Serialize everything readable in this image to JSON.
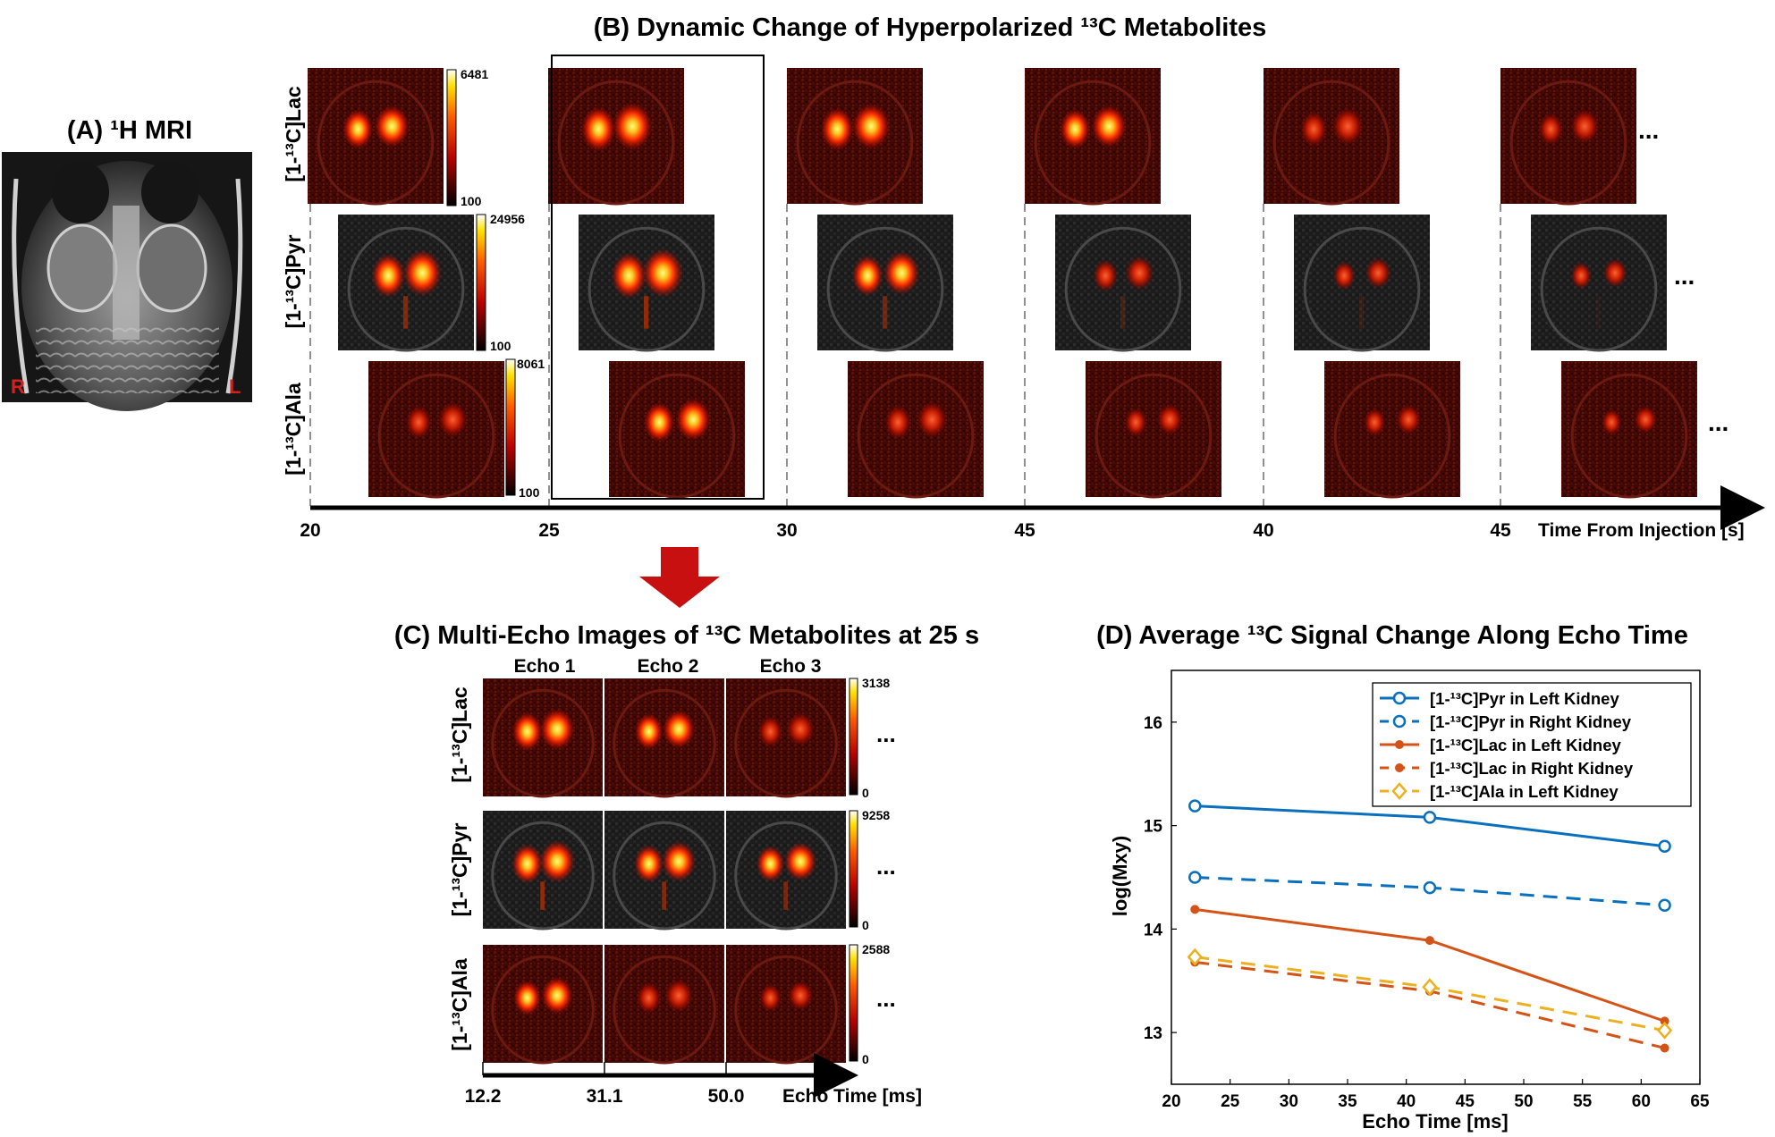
{
  "colors": {
    "hot_dark": "#000000",
    "hot_red": "#b80000",
    "hot_orange": "#ff5a00",
    "hot_yellow": "#ffe000",
    "hot_white": "#ffffff",
    "rl_label": "#d42020",
    "arrow": "#c81010",
    "pyr": "#0a70bd",
    "lac": "#d45316",
    "ala": "#edb120"
  },
  "panel_a": {
    "title": "(A) ¹H MRI",
    "label_r": "R",
    "label_l": "L"
  },
  "panel_b": {
    "title": "(B) Dynamic Change of Hyperpolarized ¹³C Metabolites",
    "rows": [
      {
        "label": "[1-¹³C]Lac",
        "cbar_max": "6481",
        "cbar_min": "100",
        "ellipsis": "..."
      },
      {
        "label": "[1-¹³C]Pyr",
        "cbar_max": "24956",
        "cbar_min": "100",
        "ellipsis": "..."
      },
      {
        "label": "[1-¹³C]Ala",
        "cbar_max": "8061",
        "cbar_min": "100",
        "ellipsis": "..."
      }
    ],
    "time_ticks": [
      "20",
      "25",
      "30",
      "45",
      "40",
      "45"
    ],
    "time_label": "Time From Injection [s]"
  },
  "panel_c": {
    "title": "(C) Multi-Echo Images of ¹³C Metabolites at 25 s",
    "echo_headers": [
      "Echo 1",
      "Echo 2",
      "Echo 3"
    ],
    "rows": [
      {
        "label": "[1-¹³C]Lac",
        "cbar_max": "3138",
        "cbar_min": "0",
        "ellipsis": "..."
      },
      {
        "label": "[1-¹³C]Pyr",
        "cbar_max": "9258",
        "cbar_min": "0",
        "ellipsis": "..."
      },
      {
        "label": "[1-¹³C]Ala",
        "cbar_max": "2588",
        "cbar_min": "0",
        "ellipsis": "..."
      }
    ],
    "echo_ticks": [
      "12.2",
      "31.1",
      "50.0"
    ],
    "echo_label": "Echo Time [ms]"
  },
  "chart_data": {
    "type": "line",
    "title": "(D) Average ¹³C Signal Change Along Echo Time",
    "xlabel": "Echo Time [ms]",
    "ylabel": "log(Mxy)",
    "xlim": [
      20,
      65
    ],
    "ylim": [
      12.5,
      16.5
    ],
    "xticks": [
      20,
      25,
      30,
      35,
      40,
      45,
      50,
      55,
      60,
      65
    ],
    "yticks": [
      13,
      14,
      15,
      16
    ],
    "x": [
      22,
      42,
      62
    ],
    "legend_position": "top-right",
    "series": [
      {
        "name": "[1-¹³C]Pyr in Left Kidney",
        "values": [
          15.19,
          15.08,
          14.8
        ],
        "color": "#0a70bd",
        "dash": "solid",
        "marker": "circle"
      },
      {
        "name": "[1-¹³C]Pyr in Right Kidney",
        "values": [
          14.5,
          14.4,
          14.23
        ],
        "color": "#0a70bd",
        "dash": "dashed",
        "marker": "circle"
      },
      {
        "name": "[1-¹³C]Lac in Left Kidney",
        "values": [
          14.19,
          13.89,
          13.11
        ],
        "color": "#d45316",
        "dash": "solid",
        "marker": "dot"
      },
      {
        "name": "[1-¹³C]Lac in Right Kidney",
        "values": [
          13.68,
          13.4,
          12.85
        ],
        "color": "#d45316",
        "dash": "dashed",
        "marker": "dot"
      },
      {
        "name": "[1-¹³C]Ala in Left Kidney",
        "values": [
          13.73,
          13.44,
          13.02
        ],
        "color": "#edb120",
        "dash": "dashed",
        "marker": "diamond"
      }
    ]
  }
}
